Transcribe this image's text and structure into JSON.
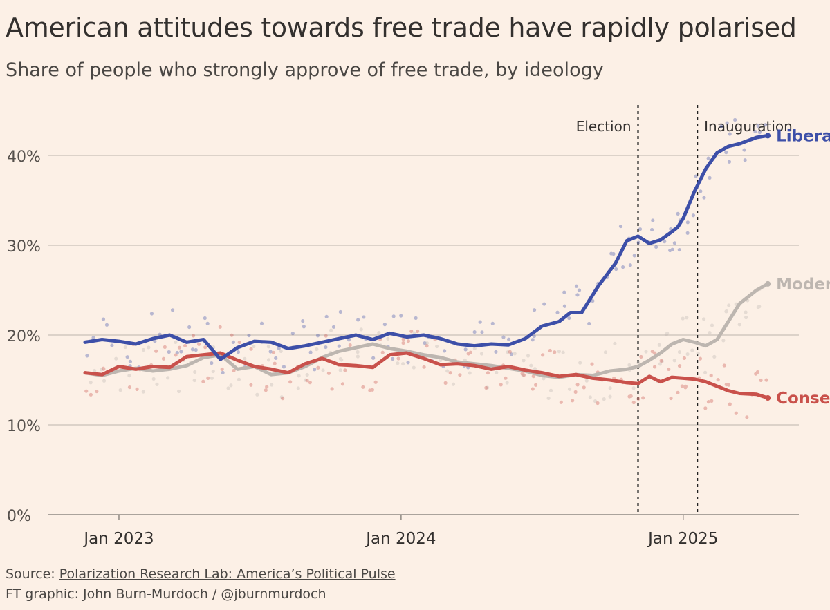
{
  "header": {
    "title": "American attitudes towards free trade have rapidly polarised",
    "subtitle": "Share of people who strongly approve of free trade, by ideology"
  },
  "footer": {
    "source_prefix": "Source:",
    "source_link": "Polarization Research Lab: America’s Political Pulse",
    "credit": "FT graphic: John Burn-Murdoch / @jburnmurdoch"
  },
  "colors": {
    "background": "#fcf0e6",
    "liberal": "#3d4fa8",
    "moderate": "#bdb6b0",
    "conservative": "#c9514b",
    "grid": "#c9bfb8",
    "text": "#33302e"
  },
  "chart_data": {
    "type": "line",
    "title": "American attitudes towards free trade have rapidly polarised",
    "subtitle": "Share of people who strongly approve of free trade, by ideology",
    "xlabel": "",
    "ylabel": "",
    "x_unit": "years since Jan 2023",
    "xlim": [
      -0.25,
      2.41
    ],
    "ylim": [
      0,
      45
    ],
    "y_ticks": [
      0,
      10,
      20,
      30,
      40
    ],
    "y_tick_labels": [
      "0%",
      "10%",
      "20%",
      "30%",
      "40%"
    ],
    "x_ticks": [
      0,
      1,
      2
    ],
    "x_tick_labels": [
      "Jan 2023",
      "Jan 2024",
      "Jan 2025"
    ],
    "grid": true,
    "annotations": [
      {
        "label": "Election",
        "x": 1.84
      },
      {
        "label": "Inauguration",
        "x": 2.05
      }
    ],
    "series": [
      {
        "name": "Liberal",
        "color": "#3d4fa8",
        "x": [
          -0.12,
          -0.06,
          0,
          0.06,
          0.12,
          0.18,
          0.24,
          0.3,
          0.36,
          0.42,
          0.48,
          0.54,
          0.6,
          0.66,
          0.72,
          0.78,
          0.84,
          0.9,
          0.96,
          1.02,
          1.08,
          1.14,
          1.2,
          1.26,
          1.32,
          1.38,
          1.44,
          1.5,
          1.56,
          1.6,
          1.64,
          1.7,
          1.76,
          1.8,
          1.84,
          1.88,
          1.92,
          1.96,
          1.98,
          2.0,
          2.04,
          2.08,
          2.12,
          2.16,
          2.2,
          2.26,
          2.3
        ],
        "values": [
          19.2,
          19.5,
          19.3,
          19.0,
          19.6,
          20.0,
          19.2,
          19.5,
          17.3,
          18.6,
          19.3,
          19.2,
          18.5,
          18.8,
          19.2,
          19.6,
          20.0,
          19.5,
          20.2,
          19.8,
          20.0,
          19.6,
          19.0,
          18.8,
          19.0,
          18.9,
          19.6,
          21.0,
          21.5,
          22.5,
          22.5,
          25.5,
          28.0,
          30.5,
          31.0,
          30.2,
          30.6,
          31.5,
          32.0,
          33.0,
          36.0,
          38.5,
          40.3,
          41.0,
          41.3,
          42.0,
          42.2
        ]
      },
      {
        "name": "Moderate",
        "color": "#bdb6b0",
        "x": [
          -0.12,
          -0.06,
          0,
          0.06,
          0.12,
          0.18,
          0.24,
          0.3,
          0.36,
          0.42,
          0.48,
          0.54,
          0.6,
          0.66,
          0.72,
          0.78,
          0.84,
          0.9,
          0.96,
          1.02,
          1.08,
          1.14,
          1.2,
          1.26,
          1.32,
          1.38,
          1.44,
          1.5,
          1.56,
          1.62,
          1.68,
          1.74,
          1.8,
          1.84,
          1.88,
          1.92,
          1.96,
          2.0,
          2.04,
          2.08,
          2.12,
          2.16,
          2.2,
          2.26,
          2.3
        ],
        "values": [
          15.8,
          15.5,
          16.0,
          16.3,
          16.0,
          16.2,
          16.6,
          17.5,
          17.8,
          16.2,
          16.5,
          15.6,
          15.8,
          16.5,
          17.5,
          18.2,
          18.6,
          19.0,
          18.5,
          18.2,
          17.8,
          17.5,
          17.0,
          16.8,
          16.6,
          16.3,
          16.0,
          15.5,
          15.3,
          15.6,
          15.5,
          16.0,
          16.2,
          16.5,
          17.2,
          18.0,
          19.0,
          19.5,
          19.2,
          18.8,
          19.5,
          21.5,
          23.5,
          25.0,
          25.7
        ]
      },
      {
        "name": "Conservative",
        "color": "#c9514b",
        "x": [
          -0.12,
          -0.06,
          0,
          0.06,
          0.12,
          0.18,
          0.24,
          0.3,
          0.36,
          0.42,
          0.48,
          0.54,
          0.6,
          0.66,
          0.72,
          0.78,
          0.84,
          0.9,
          0.96,
          1.02,
          1.08,
          1.14,
          1.2,
          1.26,
          1.32,
          1.38,
          1.44,
          1.5,
          1.56,
          1.62,
          1.68,
          1.74,
          1.8,
          1.84,
          1.88,
          1.92,
          1.96,
          2.0,
          2.04,
          2.08,
          2.12,
          2.16,
          2.2,
          2.26,
          2.3
        ],
        "values": [
          15.8,
          15.6,
          16.5,
          16.2,
          16.5,
          16.4,
          17.6,
          17.8,
          18.0,
          17.2,
          16.5,
          16.2,
          15.8,
          16.8,
          17.4,
          16.7,
          16.6,
          16.4,
          17.8,
          18.0,
          17.4,
          16.7,
          16.8,
          16.6,
          16.2,
          16.5,
          16.1,
          15.8,
          15.4,
          15.6,
          15.2,
          15.0,
          14.7,
          14.6,
          15.4,
          14.8,
          15.3,
          15.2,
          15.1,
          14.8,
          14.3,
          13.8,
          13.5,
          13.4,
          13.0
        ]
      }
    ]
  }
}
